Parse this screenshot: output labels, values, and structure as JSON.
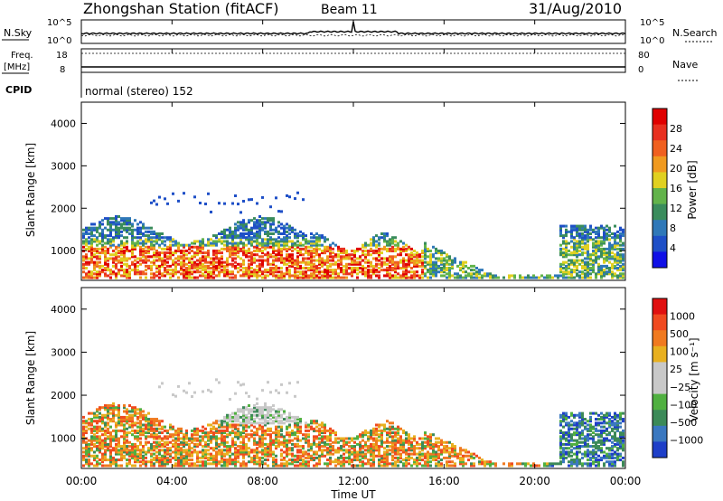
{
  "header": {
    "station": "Zhongshan Station (fitACF)",
    "beam": "Beam 11",
    "date": "31/Aug/2010"
  },
  "noise_panel": {
    "left_label": "N.Sky",
    "right_label": "N.Search",
    "left_ticks": [
      "10^5",
      "10^0"
    ],
    "right_ticks": [
      "10^5",
      "10^0"
    ]
  },
  "freq_panel": {
    "left_label": "Freq.",
    "left_unit": "[MHz]",
    "right_label": "Nave",
    "left_ticks": [
      "18",
      "8"
    ],
    "right_ticks": [
      "80",
      "0"
    ]
  },
  "cpid": {
    "label": "CPID",
    "text": "normal (stereo) 152"
  },
  "colors": {
    "power_scale": [
      "#1010e6",
      "#1e4fc7",
      "#2f78b8",
      "#3a8c5c",
      "#62b34a",
      "#e0d020",
      "#f09a20",
      "#f06020",
      "#e83020",
      "#e00000"
    ],
    "velocity_scale": [
      "#1e3fc8",
      "#3a78c0",
      "#3c8a58",
      "#50b040",
      "#c8c8c8",
      "#c8c8c8",
      "#e8b020",
      "#f07a20",
      "#f04a20",
      "#e01010"
    ]
  },
  "chart_data": [
    {
      "type": "heatmap",
      "name": "power",
      "ylabel": "Slant Range [km]",
      "yticks": [
        "1000",
        "2000",
        "3000",
        "4000"
      ],
      "ylim": [
        300,
        4500
      ],
      "xlim": [
        0,
        24
      ],
      "colorbar_label": "Power [dB]",
      "colorbar_ticks": [
        "4",
        "8",
        "12",
        "16",
        "20",
        "24",
        "28"
      ],
      "colorbar_range": [
        0,
        30
      ]
    },
    {
      "type": "heatmap",
      "name": "velocity",
      "ylabel": "Slant Range [km]",
      "yticks": [
        "1000",
        "2000",
        "3000",
        "4000"
      ],
      "ylim": [
        300,
        4500
      ],
      "xlim": [
        0,
        24
      ],
      "colorbar_label": "Velocity [m s⁻¹]",
      "colorbar_ticks": [
        "1000",
        "500",
        "100",
        "25",
        "−25",
        "−100",
        "−500",
        "−1000"
      ]
    }
  ],
  "xaxis": {
    "label": "Time UT",
    "ticks": [
      "00:00",
      "04:00",
      "08:00",
      "12:00",
      "16:00",
      "20:00",
      "00:00"
    ]
  }
}
